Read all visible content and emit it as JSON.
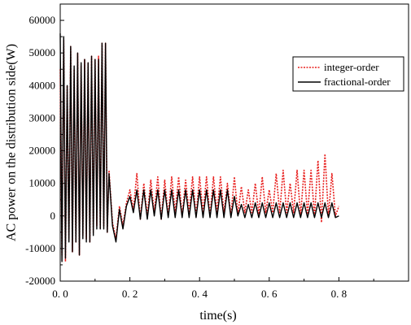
{
  "chart_data": {
    "type": "line",
    "title": "",
    "xlabel": "time(s)",
    "ylabel": "AC power on the distribution side(W)",
    "xlim": [
      0,
      1.0
    ],
    "ylim": [
      -20000,
      65000
    ],
    "x_ticks": [
      0.0,
      0.2,
      0.4,
      0.6,
      0.8
    ],
    "x_tick_labels": [
      "0. 0",
      "0. 2",
      "0. 4",
      "0. 6",
      "0. 8"
    ],
    "y_ticks": [
      -20000,
      -10000,
      0,
      10000,
      20000,
      30000,
      40000,
      50000,
      60000
    ],
    "y_tick_labels": [
      "-20000",
      "-10000",
      "0",
      "10000",
      "20000",
      "30000",
      "40000",
      "50000",
      "60000"
    ],
    "legend_position": "top-right",
    "grid": false,
    "series": [
      {
        "name": "integer-order",
        "color": "#e8201f",
        "style": "dotted",
        "x": [
          0.0,
          0.005,
          0.01,
          0.015,
          0.02,
          0.025,
          0.03,
          0.035,
          0.04,
          0.045,
          0.05,
          0.055,
          0.06,
          0.065,
          0.07,
          0.075,
          0.08,
          0.085,
          0.09,
          0.095,
          0.1,
          0.105,
          0.11,
          0.115,
          0.12,
          0.125,
          0.13,
          0.135,
          0.14,
          0.15,
          0.16,
          0.17,
          0.18,
          0.19,
          0.2,
          0.21,
          0.22,
          0.23,
          0.24,
          0.25,
          0.26,
          0.27,
          0.28,
          0.29,
          0.3,
          0.31,
          0.32,
          0.33,
          0.34,
          0.35,
          0.36,
          0.37,
          0.38,
          0.39,
          0.4,
          0.41,
          0.42,
          0.43,
          0.44,
          0.45,
          0.46,
          0.47,
          0.48,
          0.49,
          0.5,
          0.51,
          0.52,
          0.53,
          0.54,
          0.55,
          0.56,
          0.57,
          0.58,
          0.59,
          0.6,
          0.61,
          0.62,
          0.63,
          0.64,
          0.65,
          0.66,
          0.67,
          0.68,
          0.69,
          0.7,
          0.71,
          0.72,
          0.73,
          0.74,
          0.75,
          0.76,
          0.77,
          0.78,
          0.79,
          0.8
        ],
        "y": [
          45000,
          -12000,
          54000,
          -14000,
          40000,
          -7000,
          52000,
          -11000,
          45000,
          -8000,
          50000,
          -12000,
          46000,
          -6000,
          48000,
          -7000,
          47000,
          -8000,
          49000,
          -5000,
          48000,
          -3000,
          49000,
          -4000,
          53000,
          -3000,
          53000,
          -5000,
          14000,
          -2000,
          -7000,
          3000,
          -3000,
          4000,
          8000,
          2000,
          13000,
          -1000,
          10000,
          0,
          11000,
          1000,
          12000,
          -1000,
          11000,
          0,
          12000,
          1000,
          12000,
          0,
          11000,
          1000,
          12000,
          0,
          12000,
          1000,
          12000,
          0,
          12000,
          1000,
          12000,
          1000,
          10000,
          0,
          12000,
          500,
          9000,
          1000,
          8000,
          1000,
          10000,
          500,
          12000,
          1000,
          8000,
          1000,
          13000,
          1000,
          14000,
          1000,
          10000,
          1000,
          14000,
          0,
          14000,
          500,
          14000,
          0,
          17000,
          -2000,
          19000,
          0,
          13000,
          0,
          3000
        ]
      },
      {
        "name": "fractional-order",
        "color": "#000000",
        "style": "solid",
        "x": [
          0.0,
          0.005,
          0.01,
          0.015,
          0.02,
          0.025,
          0.03,
          0.035,
          0.04,
          0.045,
          0.05,
          0.055,
          0.06,
          0.065,
          0.07,
          0.075,
          0.08,
          0.085,
          0.09,
          0.095,
          0.1,
          0.105,
          0.11,
          0.115,
          0.12,
          0.125,
          0.13,
          0.135,
          0.14,
          0.15,
          0.16,
          0.17,
          0.18,
          0.19,
          0.2,
          0.21,
          0.22,
          0.23,
          0.24,
          0.25,
          0.26,
          0.27,
          0.28,
          0.29,
          0.3,
          0.31,
          0.32,
          0.33,
          0.34,
          0.35,
          0.36,
          0.37,
          0.38,
          0.39,
          0.4,
          0.41,
          0.42,
          0.43,
          0.44,
          0.45,
          0.46,
          0.47,
          0.48,
          0.49,
          0.5,
          0.51,
          0.52,
          0.53,
          0.54,
          0.55,
          0.56,
          0.57,
          0.58,
          0.59,
          0.6,
          0.61,
          0.62,
          0.63,
          0.64,
          0.65,
          0.66,
          0.67,
          0.68,
          0.69,
          0.7,
          0.71,
          0.72,
          0.73,
          0.74,
          0.75,
          0.76,
          0.77,
          0.78,
          0.79,
          0.8
        ],
        "y": [
          56000,
          -14000,
          55000,
          -13000,
          40000,
          -8000,
          52000,
          -11000,
          46000,
          -8000,
          50000,
          -12000,
          47000,
          -7000,
          48000,
          -8000,
          47000,
          -8000,
          49000,
          -6000,
          48000,
          -4000,
          48000,
          -4000,
          53000,
          -4000,
          53000,
          -5000,
          13000,
          -3000,
          -8000,
          2000,
          -4000,
          3000,
          6000,
          1000,
          8000,
          -1000,
          8000,
          -1000,
          8000,
          0,
          8000,
          -1000,
          8000,
          -500,
          8000,
          -500,
          8000,
          -500,
          8000,
          -500,
          8000,
          -500,
          8000,
          -500,
          8000,
          -500,
          8000,
          -500,
          8000,
          -500,
          8000,
          -500,
          6000,
          0,
          3500,
          -500,
          3500,
          -500,
          4000,
          -500,
          4000,
          -500,
          4000,
          -500,
          4000,
          -500,
          4000,
          -500,
          4000,
          -500,
          4000,
          -500,
          4000,
          -500,
          4000,
          -500,
          4000,
          -500,
          4000,
          -500,
          4000,
          -500,
          0
        ]
      }
    ]
  }
}
